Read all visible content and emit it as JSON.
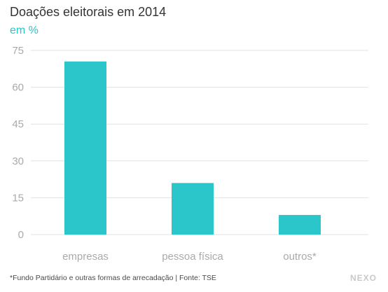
{
  "chart_data": {
    "type": "bar",
    "title": "Doações eleitorais em 2014",
    "subtitle": "em %",
    "categories": [
      "empresas",
      "pessoa física",
      "outros*"
    ],
    "values": [
      70.5,
      21,
      8
    ],
    "xlabel": "",
    "ylabel": "",
    "ylim": [
      0,
      75
    ],
    "yticks": [
      0,
      15,
      30,
      45,
      60,
      75
    ],
    "grid": true,
    "colors": {
      "bar": "#2ac6c9",
      "subtitle": "#2ac6c9",
      "grid": "#e2e2e2",
      "tick": "#aaaaaa"
    }
  },
  "footnote": "*Fundo Partidário e outras formas de arrecadação | Fonte: TSE",
  "brand": "NEXO"
}
